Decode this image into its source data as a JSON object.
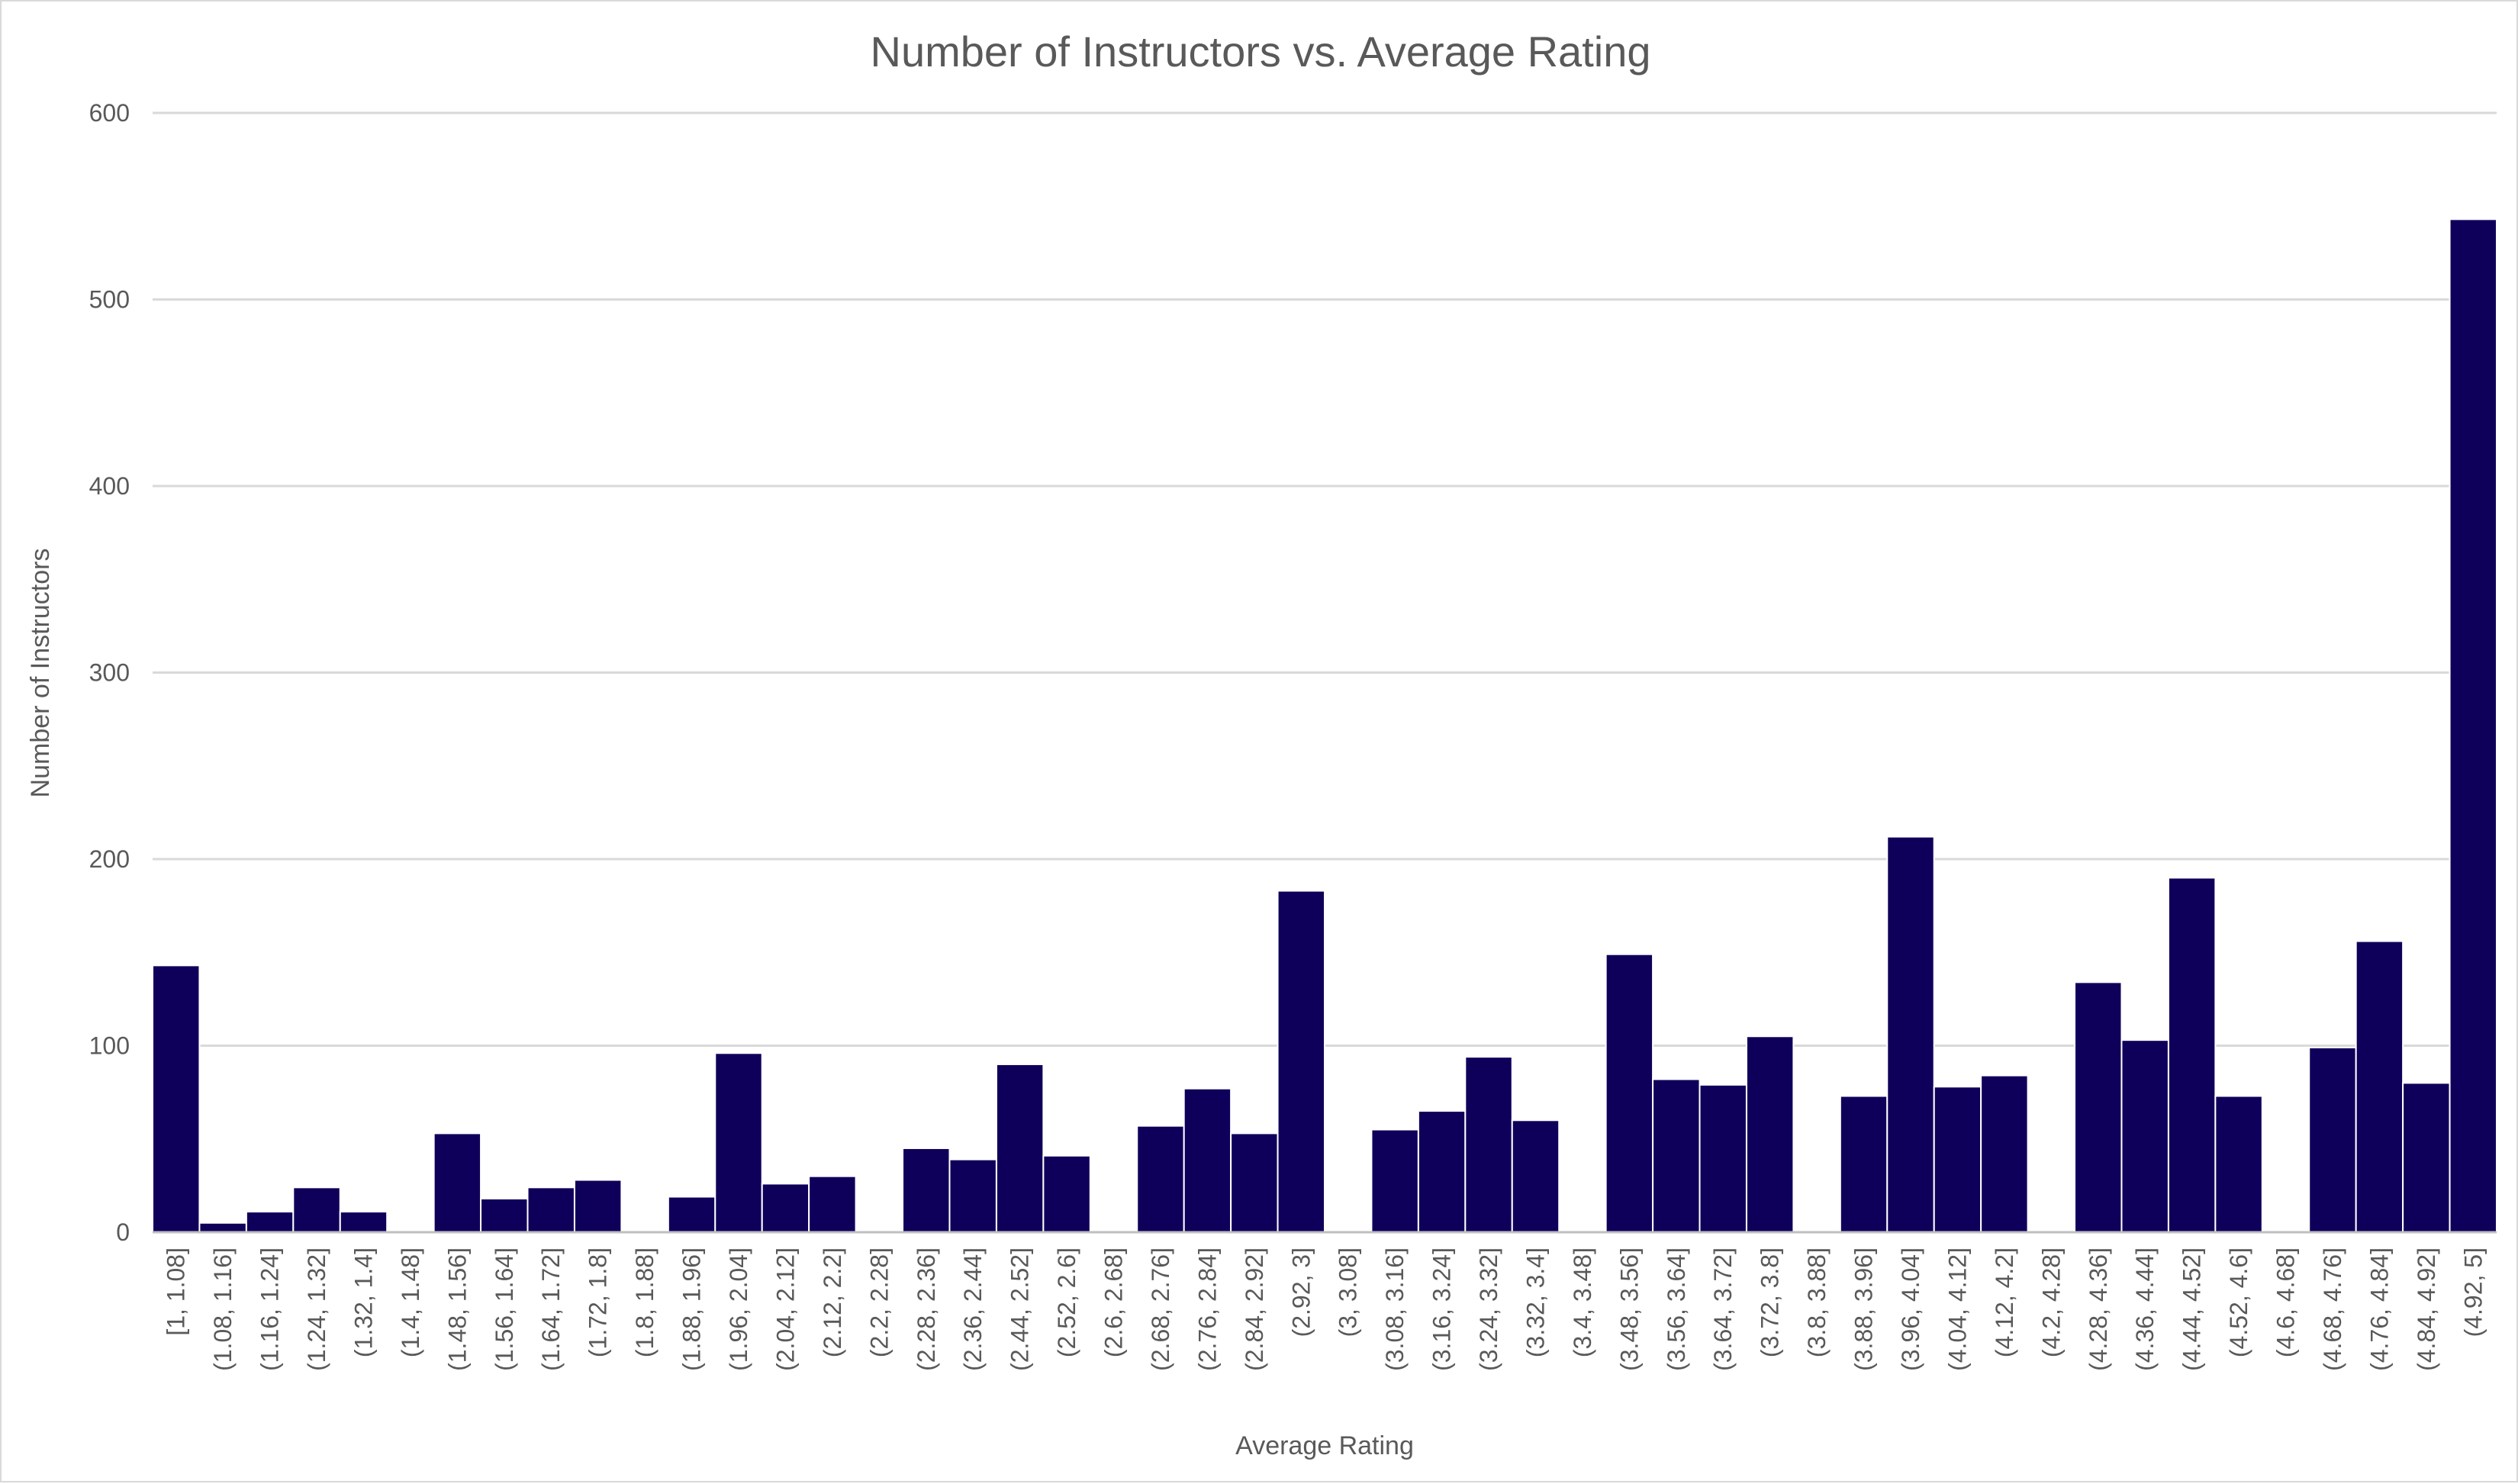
{
  "chart_data": {
    "type": "bar",
    "title": "Number of Instructors vs. Average Rating",
    "xlabel": "Average Rating",
    "ylabel": "Number of Instructors",
    "ylim": [
      0,
      600
    ],
    "yticks": [
      "0",
      "100",
      "200",
      "300",
      "400",
      "500",
      "600"
    ],
    "grid": true,
    "legend": "none",
    "bar_color": "#0e005a",
    "categories": [
      "[1, 1.08]",
      "(1.08, 1.16]",
      "(1.16, 1.24]",
      "(1.24, 1.32]",
      "(1.32, 1.4]",
      "(1.4, 1.48]",
      "(1.48, 1.56]",
      "(1.56, 1.64]",
      "(1.64, 1.72]",
      "(1.72, 1.8]",
      "(1.8, 1.88]",
      "(1.88, 1.96]",
      "(1.96, 2.04]",
      "(2.04, 2.12]",
      "(2.12, 2.2]",
      "(2.2, 2.28]",
      "(2.28, 2.36]",
      "(2.36, 2.44]",
      "(2.44, 2.52]",
      "(2.52, 2.6]",
      "(2.6, 2.68]",
      "(2.68, 2.76]",
      "(2.76, 2.84]",
      "(2.84, 2.92]",
      "(2.92, 3]",
      "(3, 3.08]",
      "(3.08, 3.16]",
      "(3.16, 3.24]",
      "(3.24, 3.32]",
      "(3.32, 3.4]",
      "(3.4, 3.48]",
      "(3.48, 3.56]",
      "(3.56, 3.64]",
      "(3.64, 3.72]",
      "(3.72, 3.8]",
      "(3.8, 3.88]",
      "(3.88, 3.96]",
      "(3.96, 4.04]",
      "(4.04, 4.12]",
      "(4.12, 4.2]",
      "(4.2, 4.28]",
      "(4.28, 4.36]",
      "(4.36, 4.44]",
      "(4.44, 4.52]",
      "(4.52, 4.6]",
      "(4.6, 4.68]",
      "(4.68, 4.76]",
      "(4.76, 4.84]",
      "(4.84, 4.92]",
      "(4.92, 5]"
    ],
    "values": [
      143,
      5,
      11,
      24,
      11,
      0,
      53,
      18,
      24,
      28,
      0,
      19,
      96,
      26,
      30,
      0,
      45,
      39,
      90,
      41,
      0,
      57,
      77,
      53,
      183,
      0,
      55,
      65,
      94,
      60,
      0,
      149,
      82,
      79,
      105,
      0,
      73,
      212,
      78,
      84,
      0,
      134,
      103,
      190,
      73,
      0,
      99,
      156,
      80,
      543
    ]
  }
}
